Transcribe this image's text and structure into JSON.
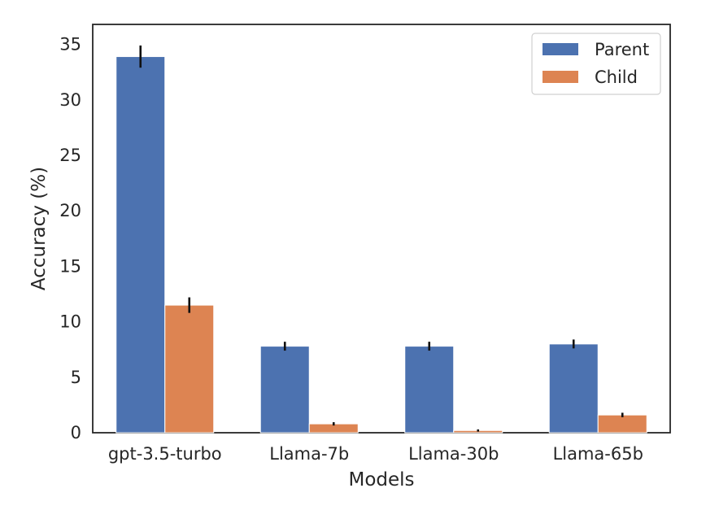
{
  "chart_data": {
    "type": "bar",
    "xlabel": "Models",
    "ylabel": "Accuracy (%)",
    "categories": [
      "gpt-3.5-turbo",
      "Llama-7b",
      "Llama-30b",
      "Llama-65b"
    ],
    "series": [
      {
        "name": "Parent",
        "color": "#4c72b0",
        "values": [
          33.9,
          7.8,
          7.8,
          8.0
        ],
        "errors": [
          1.0,
          0.4,
          0.4,
          0.4
        ]
      },
      {
        "name": "Child",
        "color": "#dd8452",
        "values": [
          11.5,
          0.8,
          0.2,
          1.6
        ],
        "errors": [
          0.7,
          0.15,
          0.1,
          0.2
        ]
      }
    ],
    "ylim": [
      0,
      36.8
    ],
    "yticks": [
      0,
      5,
      10,
      15,
      20,
      25,
      30,
      35
    ],
    "grid": false,
    "legend_position": "top-right"
  }
}
